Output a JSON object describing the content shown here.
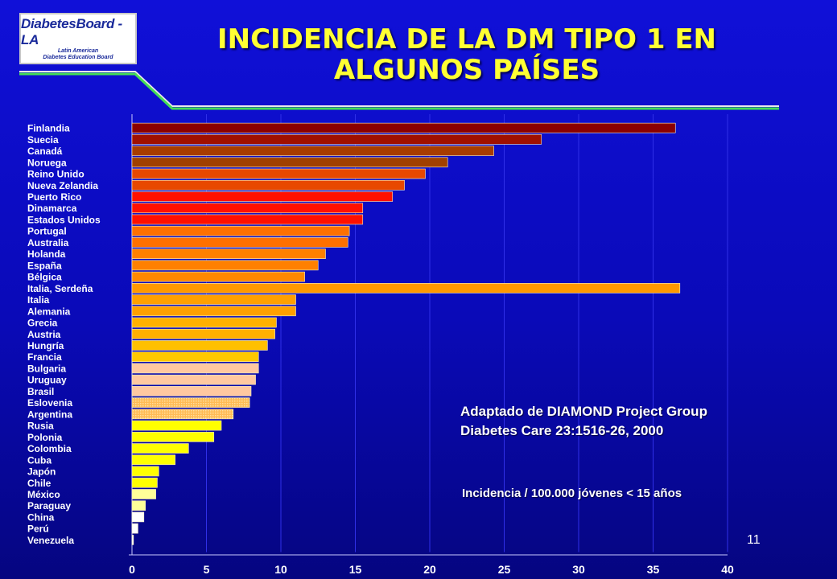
{
  "logo": {
    "name": "DiabetesBoard - LA",
    "line1": "Latin American",
    "line2": "Diabetes Education Board"
  },
  "title_lines": [
    "INCIDENCIA DE LA DM TIPO 1 EN",
    "ALGUNOS PAÍSES"
  ],
  "source_lines": [
    "Adaptado de DIAMOND Project Group",
    "Diabetes Care 23:1516-26, 2000"
  ],
  "unit_note": "Incidencia / 100.000 jóvenes < 15 años",
  "page_number": "11",
  "colors": {
    "background": "#0a0ab8",
    "title": "#ffff33",
    "divider": "#44dd55"
  },
  "chart_data": {
    "type": "bar",
    "orientation": "horizontal",
    "title": "INCIDENCIA DE LA DM TIPO 1 EN ALGUNOS PAÍSES",
    "xlabel": "",
    "ylabel": "",
    "xlim": [
      0,
      40
    ],
    "xticks": [
      0,
      5,
      10,
      15,
      20,
      25,
      30,
      35,
      40
    ],
    "grid": "vertical",
    "categories": [
      "Finlandia",
      "Suecia",
      "Canadá",
      "Noruega",
      "Reino Unido",
      "Nueva Zelandia",
      "Puerto Rico",
      "Dinamarca",
      "Estados Unidos",
      "Portugal",
      "Australia",
      "Holanda",
      "España",
      "Bélgica",
      "Italia, Serdeña",
      "Italia",
      "Alemania",
      "Grecia",
      "Austria",
      "Hungría",
      "Francia",
      "Bulgaria",
      "Uruguay",
      "Brasil",
      "Eslovenia",
      "Argentina",
      "Rusia",
      "Polonia",
      "Colombia",
      "Cuba",
      "Japón",
      "Chile",
      "México",
      "Paraguay",
      "China",
      "Perú",
      "Venezuela"
    ],
    "values": [
      36.5,
      27.5,
      24.3,
      21.2,
      19.7,
      18.3,
      17.5,
      15.5,
      15.5,
      14.6,
      14.5,
      13.0,
      12.5,
      11.6,
      36.8,
      11.0,
      11.0,
      9.7,
      9.6,
      9.1,
      8.5,
      8.5,
      8.3,
      8.0,
      7.9,
      6.8,
      6.0,
      5.5,
      3.8,
      2.9,
      1.8,
      1.7,
      1.6,
      0.9,
      0.8,
      0.4,
      0.1
    ],
    "bar_colors": [
      "#8b0000",
      "#a01000",
      "#a83c00",
      "#a04000",
      "#e84800",
      "#e84800",
      "#ff1000",
      "#ff1000",
      "#ff1000",
      "#ff7000",
      "#ff7000",
      "#ff8000",
      "#ff8000",
      "#ff8800",
      "#ff9900",
      "#ffa000",
      "#ffa000",
      "#ffb000",
      "#ffb000",
      "#ffc000",
      "#ffc800",
      "#ffc8a0",
      "#ffc8a0",
      "#ffc8a0",
      "#ffcc66",
      "#ffcc66",
      "#ffff00",
      "#ffff00",
      "#ffff00",
      "#ffff00",
      "#ffff00",
      "#ffff00",
      "#ffff99",
      "#ffff99",
      "#ffffff",
      "#ffffff",
      "#ffffff"
    ]
  }
}
